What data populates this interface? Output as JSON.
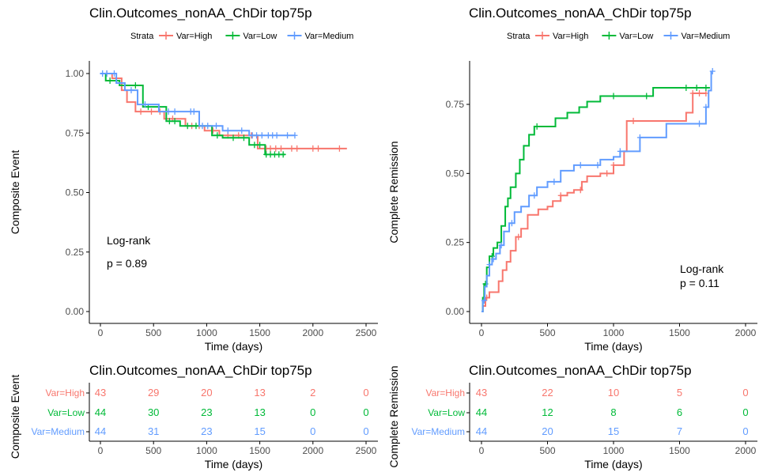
{
  "colors": {
    "high": "#F8766D",
    "low": "#00BA38",
    "medium": "#619CFF",
    "axis": "#000000",
    "tick_label": "#4d4d4d"
  },
  "strata_labels": [
    "Var=High",
    "Var=Low",
    "Var=Medium"
  ],
  "chart_data": [
    {
      "type": "line",
      "subtype": "kaplan-meier",
      "title": "Clin.Outcomes_nonAA_ChDir top75p",
      "xlabel": "Time (days)",
      "ylabel": "Composite Event",
      "xlim": [
        0,
        2500
      ],
      "ylim": [
        0,
        1
      ],
      "xticks": [
        0,
        500,
        1000,
        1500,
        2000,
        2500
      ],
      "yticks": [
        0.0,
        0.25,
        0.5,
        0.75,
        1.0
      ],
      "legend": {
        "title": "Strata",
        "position": "top"
      },
      "annotation": {
        "line1": "Log-rank",
        "line2": "p = 0.89"
      },
      "series": [
        {
          "name": "Var=High",
          "color": "#F8766D",
          "x": [
            0,
            110,
            200,
            250,
            330,
            500,
            600,
            700,
            800,
            980,
            1120,
            1480,
            2320
          ],
          "y": [
            1.0,
            0.98,
            0.93,
            0.88,
            0.84,
            0.84,
            0.81,
            0.81,
            0.78,
            0.76,
            0.74,
            0.685,
            0.685
          ],
          "censor_x": [
            60,
            150,
            380,
            480,
            560,
            680,
            860,
            930,
            1060,
            1200,
            1300,
            1420,
            1560,
            1600,
            1650,
            1700,
            1800,
            1850,
            2000,
            2050,
            2250
          ]
        },
        {
          "name": "Var=Low",
          "color": "#00BA38",
          "x": [
            0,
            50,
            120,
            180,
            280,
            400,
            580,
            620,
            750,
            1000,
            1050,
            1150,
            1400,
            1550,
            1740
          ],
          "y": [
            1.0,
            0.97,
            0.97,
            0.95,
            0.95,
            0.86,
            0.86,
            0.8,
            0.78,
            0.78,
            0.74,
            0.73,
            0.7,
            0.66,
            0.66
          ],
          "censor_x": [
            90,
            330,
            450,
            650,
            700,
            820,
            900,
            1100,
            1250,
            1350,
            1450,
            1500,
            1560,
            1600,
            1640,
            1680,
            1720
          ]
        },
        {
          "name": "Var=Medium",
          "color": "#619CFF",
          "x": [
            0,
            80,
            150,
            230,
            350,
            550,
            730,
            930,
            1050,
            1150,
            1400,
            1830
          ],
          "y": [
            1.0,
            1.0,
            0.96,
            0.93,
            0.87,
            0.84,
            0.84,
            0.78,
            0.78,
            0.76,
            0.74,
            0.74
          ],
          "censor_x": [
            20,
            60,
            130,
            290,
            420,
            640,
            700,
            850,
            880,
            960,
            1010,
            1090,
            1200,
            1330,
            1430,
            1470,
            1520,
            1580,
            1620,
            1660,
            1760,
            1830
          ]
        }
      ]
    },
    {
      "type": "line",
      "subtype": "kaplan-meier-cumulative",
      "title": "Clin.Outcomes_nonAA_ChDir top75p",
      "xlabel": "Time (days)",
      "ylabel": "Complete Remission",
      "xlim": [
        0,
        2000
      ],
      "ylim": [
        0,
        0.87
      ],
      "xticks": [
        0,
        500,
        1000,
        1500,
        2000
      ],
      "yticks": [
        0.0,
        0.25,
        0.5,
        0.75
      ],
      "legend": {
        "title": "Strata",
        "position": "top"
      },
      "annotation": {
        "line1": "Log-rank",
        "line2": "p = 0.11"
      },
      "series": [
        {
          "name": "Var=High",
          "color": "#F8766D",
          "x": [
            0,
            10,
            30,
            60,
            100,
            130,
            160,
            190,
            220,
            260,
            300,
            350,
            430,
            500,
            540,
            600,
            650,
            700,
            760,
            800,
            850,
            900,
            1000,
            1080,
            1100,
            1300,
            1500,
            1550,
            1600,
            1700
          ],
          "y": [
            0,
            0.02,
            0.05,
            0.07,
            0.07,
            0.11,
            0.15,
            0.18,
            0.22,
            0.27,
            0.3,
            0.35,
            0.37,
            0.38,
            0.4,
            0.42,
            0.43,
            0.44,
            0.47,
            0.49,
            0.49,
            0.5,
            0.53,
            0.58,
            0.69,
            0.69,
            0.69,
            0.72,
            0.79,
            0.79
          ],
          "censor_x": [
            40,
            280,
            600,
            750,
            950,
            1000,
            1150,
            1600,
            1650,
            1700
          ]
        },
        {
          "name": "Var=Low",
          "color": "#00BA38",
          "x": [
            0,
            10,
            20,
            40,
            60,
            90,
            120,
            150,
            180,
            200,
            220,
            260,
            290,
            320,
            360,
            400,
            450,
            560,
            650,
            740,
            800,
            900,
            1000,
            1300,
            1600,
            1730
          ],
          "y": [
            0,
            0.05,
            0.1,
            0.16,
            0.2,
            0.23,
            0.25,
            0.31,
            0.38,
            0.41,
            0.45,
            0.5,
            0.55,
            0.6,
            0.64,
            0.67,
            0.67,
            0.7,
            0.72,
            0.74,
            0.76,
            0.78,
            0.78,
            0.81,
            0.81,
            0.81
          ],
          "censor_x": [
            30,
            80,
            420,
            1000,
            1250,
            1550,
            1630,
            1700
          ]
        },
        {
          "name": "Var=Medium",
          "color": "#619CFF",
          "x": [
            0,
            10,
            25,
            40,
            60,
            80,
            110,
            140,
            170,
            210,
            250,
            300,
            360,
            420,
            500,
            600,
            700,
            800,
            900,
            1000,
            1050,
            1200,
            1400,
            1600,
            1700,
            1720,
            1740
          ],
          "y": [
            0,
            0.04,
            0.09,
            0.13,
            0.17,
            0.19,
            0.21,
            0.24,
            0.29,
            0.32,
            0.36,
            0.38,
            0.42,
            0.45,
            0.47,
            0.51,
            0.53,
            0.53,
            0.55,
            0.56,
            0.58,
            0.63,
            0.68,
            0.68,
            0.74,
            0.8,
            0.87
          ],
          "censor_x": [
            20,
            60,
            90,
            150,
            230,
            400,
            550,
            750,
            880,
            1050,
            1200,
            1650,
            1700,
            1750
          ]
        }
      ]
    },
    {
      "type": "table",
      "subtype": "risk-table",
      "title": "Clin.Outcomes_nonAA_ChDir top75p",
      "xlabel": "Time (days)",
      "ylabel": "Composite Event",
      "xlim": [
        0,
        2500
      ],
      "xticks": [
        0,
        500,
        1000,
        1500,
        2000,
        2500
      ],
      "times": [
        0,
        500,
        1000,
        1500,
        2000,
        2500
      ],
      "rows": [
        {
          "name": "Var=High",
          "color": "#F8766D",
          "values": [
            43,
            29,
            20,
            13,
            2,
            0
          ]
        },
        {
          "name": "Var=Low",
          "color": "#00BA38",
          "values": [
            44,
            30,
            23,
            13,
            0,
            0
          ]
        },
        {
          "name": "Var=Medium",
          "color": "#619CFF",
          "values": [
            44,
            31,
            23,
            15,
            0,
            0
          ]
        }
      ]
    },
    {
      "type": "table",
      "subtype": "risk-table",
      "title": "Clin.Outcomes_nonAA_ChDir top75p",
      "xlabel": "Time (days)",
      "ylabel": "Complete Remission",
      "xlim": [
        0,
        2000
      ],
      "xticks": [
        0,
        500,
        1000,
        1500,
        2000
      ],
      "times": [
        0,
        500,
        1000,
        1500,
        2000
      ],
      "rows": [
        {
          "name": "Var=High",
          "color": "#F8766D",
          "values": [
            43,
            22,
            10,
            5,
            0
          ]
        },
        {
          "name": "Var=Low",
          "color": "#00BA38",
          "values": [
            44,
            12,
            8,
            6,
            0
          ]
        },
        {
          "name": "Var=Medium",
          "color": "#619CFF",
          "values": [
            44,
            20,
            15,
            7,
            0
          ]
        }
      ]
    }
  ]
}
